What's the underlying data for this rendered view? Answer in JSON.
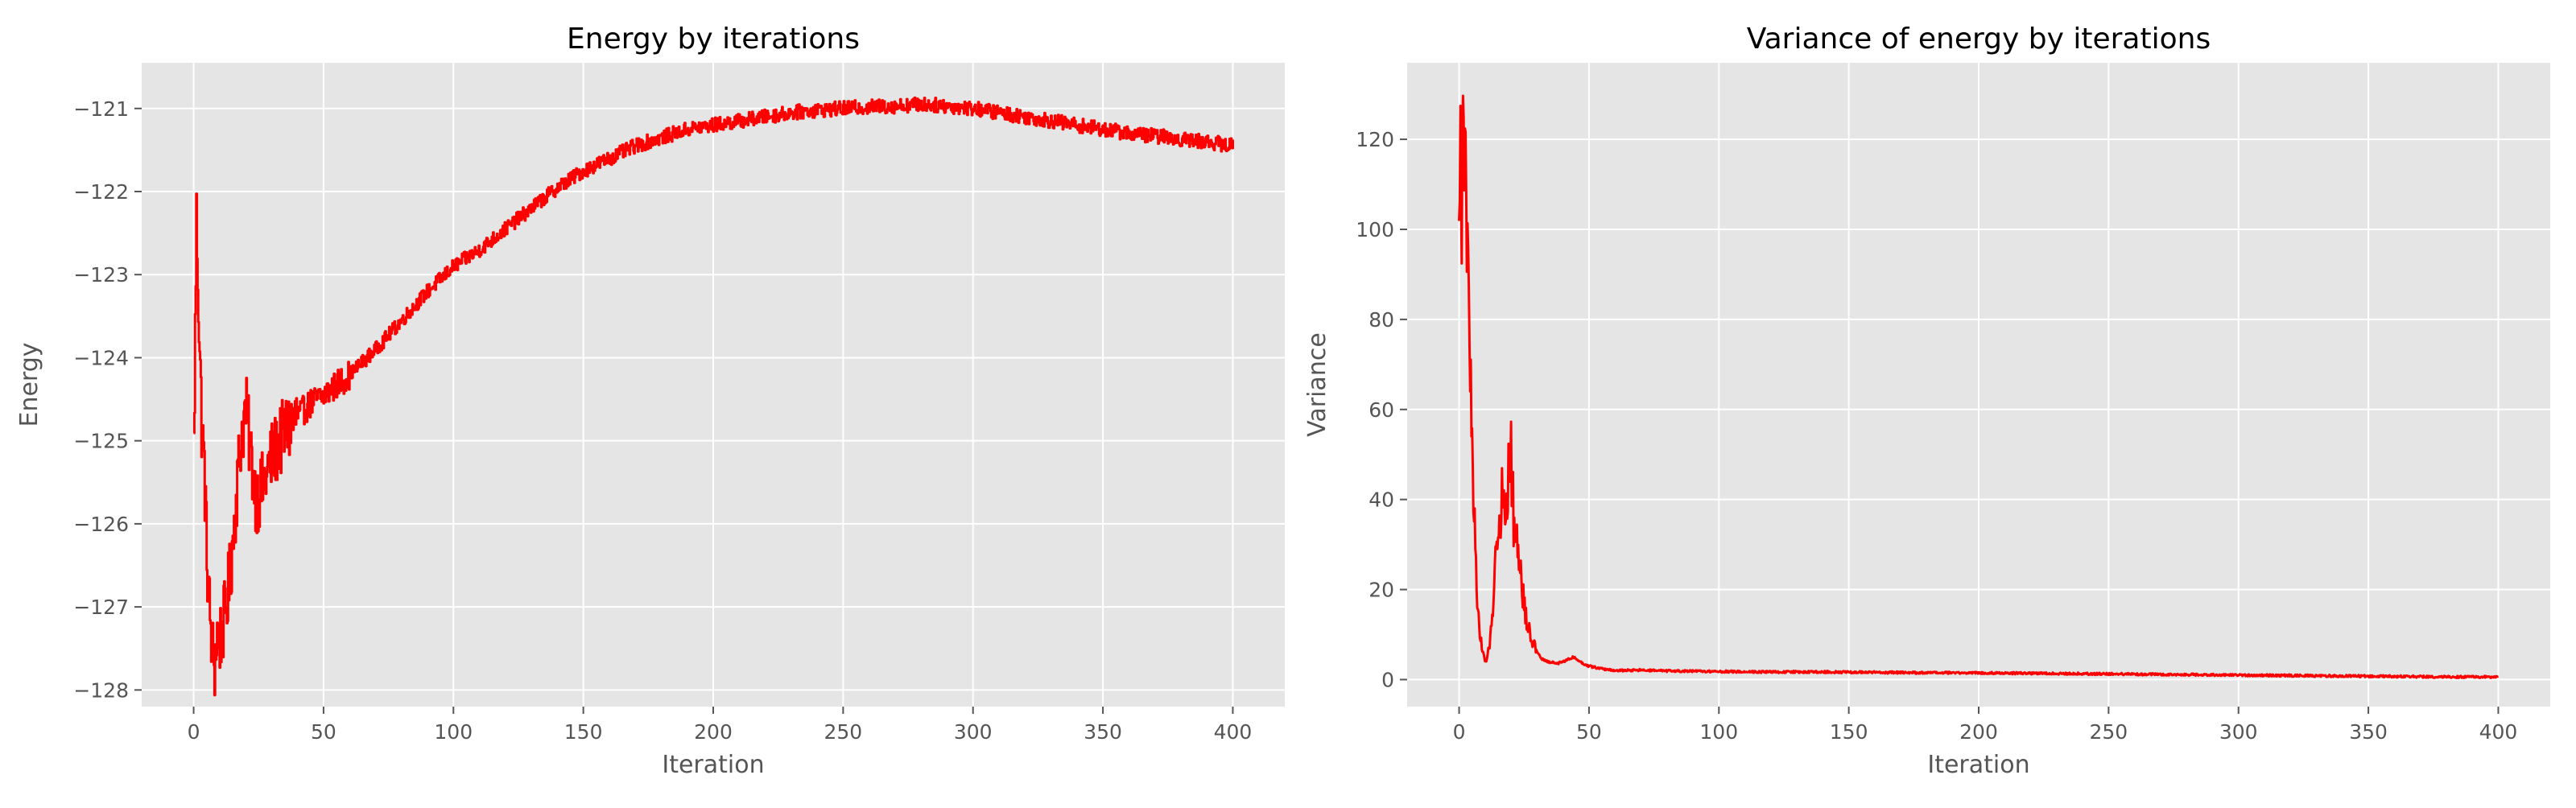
{
  "chart_data": [
    {
      "type": "line",
      "title": "Energy by iterations",
      "xlabel": "Iteration",
      "ylabel": "Energy",
      "xlim": [
        -20,
        420
      ],
      "ylim": [
        -128.2,
        -120.45
      ],
      "xticks": [
        0,
        50,
        100,
        150,
        200,
        250,
        300,
        350,
        400
      ],
      "yticks": [
        -128,
        -127,
        -126,
        -125,
        -124,
        -123,
        -122,
        -121
      ],
      "ytick_labels": [
        "−128",
        "−127",
        "−126",
        "−125",
        "−124",
        "−123",
        "−122",
        "−121"
      ],
      "grid": true,
      "line_color": "#ff0000",
      "background_color": "#e5e5e5",
      "series": [
        {
          "drawstyle": "steps",
          "x": [
            0,
            1,
            2,
            3,
            4,
            5,
            6,
            7,
            8,
            9,
            10,
            12,
            14,
            16,
            18,
            20,
            22,
            24,
            26,
            28,
            30,
            35,
            40,
            45,
            50,
            60,
            70,
            80,
            90,
            100,
            110,
            120,
            130,
            140,
            150,
            160,
            170,
            180,
            190,
            200,
            210,
            220,
            230,
            240,
            250,
            260,
            270,
            280,
            290,
            300,
            310,
            320,
            330,
            340,
            350,
            360,
            370,
            380,
            390,
            400
          ],
          "y": [
            -125.1,
            -122.3,
            -123.6,
            -124.8,
            -125.3,
            -126.4,
            -127.0,
            -127.5,
            -127.7,
            -127.3,
            -127.4,
            -127.1,
            -126.6,
            -125.8,
            -125.0,
            -124.6,
            -125.2,
            -125.7,
            -125.6,
            -125.4,
            -125.2,
            -124.9,
            -124.7,
            -124.55,
            -124.45,
            -124.2,
            -123.9,
            -123.55,
            -123.2,
            -122.9,
            -122.7,
            -122.45,
            -122.2,
            -121.95,
            -121.75,
            -121.6,
            -121.45,
            -121.35,
            -121.25,
            -121.2,
            -121.15,
            -121.1,
            -121.05,
            -121.02,
            -121.0,
            -120.98,
            -120.97,
            -120.95,
            -120.97,
            -121.0,
            -121.05,
            -121.1,
            -121.15,
            -121.2,
            -121.25,
            -121.3,
            -121.33,
            -121.37,
            -121.4,
            -121.45
          ]
        }
      ]
    },
    {
      "type": "line",
      "title": "Variance of energy by iterations",
      "xlabel": "Iteration",
      "ylabel": "Variance",
      "xlim": [
        -20,
        420
      ],
      "ylim": [
        -6,
        137
      ],
      "xticks": [
        0,
        50,
        100,
        150,
        200,
        250,
        300,
        350,
        400
      ],
      "yticks": [
        0,
        20,
        40,
        60,
        80,
        100,
        120
      ],
      "ytick_labels": [
        "0",
        "20",
        "40",
        "60",
        "80",
        "100",
        "120"
      ],
      "grid": true,
      "line_color": "#ff0000",
      "background_color": "#e5e5e5",
      "series": [
        {
          "drawstyle": "line",
          "x": [
            0,
            0.5,
            1,
            1.5,
            2,
            2.5,
            3,
            3.5,
            4,
            5,
            6,
            7,
            8,
            9,
            10,
            11,
            12,
            13,
            14,
            15,
            16,
            17,
            18,
            19,
            20,
            21,
            22,
            23,
            24,
            25,
            26,
            28,
            30,
            32,
            34,
            36,
            38,
            40,
            42,
            44,
            46,
            48,
            50,
            55,
            60,
            70,
            80,
            100,
            120,
            140,
            160,
            180,
            200,
            220,
            240,
            260,
            280,
            300,
            320,
            340,
            360,
            380,
            400
          ],
          "y": [
            97,
            128,
            100,
            131,
            110,
            119,
            95,
            99,
            74,
            55,
            33,
            18,
            10,
            6,
            4,
            5,
            9,
            17,
            27,
            33,
            38,
            42,
            39,
            46,
            49,
            36,
            33,
            27,
            22,
            17,
            13,
            9,
            6,
            4.5,
            4,
            3.8,
            3.6,
            4,
            4.5,
            5,
            4.2,
            3.5,
            3,
            2.4,
            2,
            2.1,
            1.9,
            1.8,
            1.7,
            1.7,
            1.6,
            1.5,
            1.5,
            1.4,
            1.3,
            1.2,
            1.1,
            1.0,
            0.9,
            0.8,
            0.7,
            0.6,
            0.6
          ]
        }
      ]
    }
  ]
}
